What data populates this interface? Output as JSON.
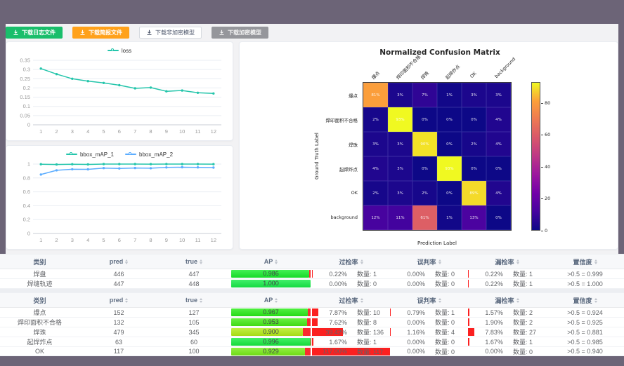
{
  "toolbar": {
    "buttons": [
      {
        "label": "下载日志文件",
        "style": "green"
      },
      {
        "label": "下载简报文件",
        "style": "orange"
      },
      {
        "label": "下载非加密模型",
        "style": "white"
      },
      {
        "label": "下载加密模型",
        "style": "gray"
      }
    ]
  },
  "colors": {
    "teal_line": "#24c5ab",
    "blue_line": "#5cadff",
    "bar_red": "#fb2b30",
    "frame_dark": "#6c6477",
    "green_button": "#19be6b",
    "orange_button": "#ffa11a",
    "gray_button": "#95969b"
  },
  "chart_data": [
    {
      "type": "line",
      "title": "loss",
      "x": [
        "1",
        "2",
        "3",
        "4",
        "5",
        "6",
        "7",
        "8",
        "9",
        "10",
        "11",
        "12"
      ],
      "series": [
        {
          "name": "loss",
          "color": "#24c5ab",
          "values": [
            0.305,
            0.275,
            0.25,
            0.237,
            0.227,
            0.215,
            0.198,
            0.202,
            0.182,
            0.186,
            0.174,
            0.17
          ]
        }
      ],
      "ylim": [
        0,
        0.35
      ],
      "yticks": [
        0,
        0.05,
        0.1,
        0.15,
        0.2,
        0.25,
        0.3,
        0.35
      ],
      "grid": true,
      "legend_position": "top"
    },
    {
      "type": "line",
      "title": "bbox_mAP",
      "x": [
        "1",
        "2",
        "3",
        "4",
        "5",
        "6",
        "7",
        "8",
        "9",
        "10",
        "11",
        "12"
      ],
      "series": [
        {
          "name": "bbox_mAP_1",
          "color": "#24c5ab",
          "values": [
            0.998,
            0.994,
            0.998,
            0.995,
            1,
            1,
            1,
            0.999,
            1,
            1,
            1,
            0.999
          ]
        },
        {
          "name": "bbox_mAP_2",
          "color": "#5cadff",
          "values": [
            0.85,
            0.91,
            0.925,
            0.924,
            0.942,
            0.937,
            0.943,
            0.94,
            0.952,
            0.955,
            0.953,
            0.95
          ]
        }
      ],
      "ylim": [
        0,
        1
      ],
      "yticks": [
        0,
        0.2,
        0.4,
        0.6,
        0.8,
        1
      ],
      "grid": true,
      "legend_position": "top"
    },
    {
      "type": "heatmap",
      "title": "Normalized Confusion Matrix",
      "xlabel": "Prediction Label",
      "ylabel": "Ground Truth Label",
      "labels": [
        "爆点",
        "焊印面积不合格",
        "焊珠",
        "起焊炸点",
        "OK",
        "background"
      ],
      "matrix_percent": [
        [
          81,
          3,
          7,
          1,
          3,
          3
        ],
        [
          2,
          93,
          0,
          0,
          0,
          4
        ],
        [
          3,
          3,
          90,
          0,
          2,
          4
        ],
        [
          4,
          3,
          0,
          93,
          0,
          0
        ],
        [
          2,
          3,
          2,
          0,
          89,
          4
        ],
        [
          12,
          11,
          61,
          1,
          13,
          0
        ]
      ],
      "vmin": 0,
      "vmax": 93,
      "colormap": "plasma",
      "colorbar_ticks": [
        0,
        20,
        40,
        60,
        80
      ]
    }
  ],
  "table_headers": [
    {
      "label": "类别",
      "sortable": false
    },
    {
      "label": "pred",
      "sortable": true
    },
    {
      "label": "true",
      "sortable": true
    },
    {
      "label": "AP",
      "sortable": true
    },
    {
      "label": "过检率",
      "sortable": true
    },
    {
      "label": "误判率",
      "sortable": true
    },
    {
      "label": "漏检率",
      "sortable": true
    },
    {
      "label": "置信度",
      "sortable": true
    }
  ],
  "tables": [
    {
      "rows": [
        {
          "name": "焊盘",
          "pred": "446",
          "true": "447",
          "ap": 0.986,
          "ap_label": "0.986",
          "over": {
            "pct": "0.22%",
            "count": "数量: 1",
            "val": 0.22
          },
          "mis": {
            "pct": "0.00%",
            "count": "数量: 0",
            "val": 0
          },
          "miss": {
            "pct": "0.22%",
            "count": "数量: 1",
            "val": 0.22
          },
          "conf": ">0.5 = 0.999"
        },
        {
          "name": "焊缝轨迹",
          "pred": "447",
          "true": "448",
          "ap": 1.0,
          "ap_label": "1.000",
          "over": {
            "pct": "0.00%",
            "count": "数量: 0",
            "val": 0
          },
          "mis": {
            "pct": "0.00%",
            "count": "数量: 0",
            "val": 0
          },
          "miss": {
            "pct": "0.22%",
            "count": "数量: 1",
            "val": 0.22
          },
          "conf": ">0.5 = 1.000"
        }
      ]
    },
    {
      "rows": [
        {
          "name": "爆点",
          "pred": "152",
          "true": "127",
          "ap": 0.967,
          "ap_label": "0.967",
          "over": {
            "pct": "7.87%",
            "count": "数量: 10",
            "val": 7.87
          },
          "mis": {
            "pct": "0.79%",
            "count": "数量: 1",
            "val": 0.79
          },
          "miss": {
            "pct": "1.57%",
            "count": "数量: 2",
            "val": 1.57
          },
          "conf": ">0.5 = 0.924"
        },
        {
          "name": "焊印面积不合格",
          "pred": "132",
          "true": "105",
          "ap": 0.953,
          "ap_label": "0.953",
          "over": {
            "pct": "7.62%",
            "count": "数量: 8",
            "val": 7.62
          },
          "mis": {
            "pct": "0.00%",
            "count": "数量: 0",
            "val": 0
          },
          "miss": {
            "pct": "1.90%",
            "count": "数量: 2",
            "val": 1.9
          },
          "conf": ">0.5 = 0.925"
        },
        {
          "name": "焊珠",
          "pred": "479",
          "true": "345",
          "ap": 0.9,
          "ap_label": "0.900",
          "over": {
            "pct": "39.42%",
            "count": "数量: 136",
            "val": 39.42
          },
          "mis": {
            "pct": "1.16%",
            "count": "数量: 4",
            "val": 1.16
          },
          "miss": {
            "pct": "7.83%",
            "count": "数量: 27",
            "val": 7.83
          },
          "conf": ">0.5 = 0.881"
        },
        {
          "name": "起焊炸点",
          "pred": "63",
          "true": "60",
          "ap": 0.996,
          "ap_label": "0.996",
          "over": {
            "pct": "1.67%",
            "count": "数量: 1",
            "val": 1.67
          },
          "mis": {
            "pct": "0.00%",
            "count": "数量: 0",
            "val": 0
          },
          "miss": {
            "pct": "1.67%",
            "count": "数量: 1",
            "val": 1.67
          },
          "conf": ">0.5 = 0.985"
        },
        {
          "name": "OK",
          "pred": "117",
          "true": "100",
          "ap": 0.929,
          "ap_label": "0.929",
          "over": {
            "pct": "117.00%",
            "count": "数量: 117",
            "val": 117
          },
          "mis": {
            "pct": "0.00%",
            "count": "数量: 0",
            "val": 0
          },
          "miss": {
            "pct": "0.00%",
            "count": "数量: 0",
            "val": 0
          },
          "conf": ">0.5 = 0.940"
        }
      ]
    }
  ]
}
